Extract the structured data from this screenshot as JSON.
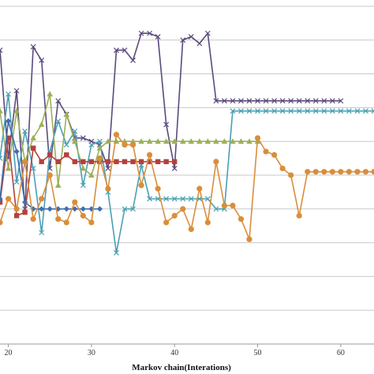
{
  "chart_data": {
    "type": "line",
    "title": "",
    "xlabel": "Markov chain(Interations)",
    "ylabel": "",
    "x_ticks": [
      20,
      30,
      40,
      50,
      60
    ],
    "xlim": [
      19,
      64
    ],
    "ylim": [
      0,
      10
    ],
    "y_gridlines": [
      1,
      2,
      3,
      4,
      5,
      6,
      7,
      8,
      9,
      10
    ],
    "grid": true,
    "legend": "none",
    "series": [
      {
        "color": "#5b4a7c",
        "marker": "x",
        "x": [
          19,
          20,
          21,
          22,
          23,
          24,
          25,
          26,
          27,
          28,
          29,
          30,
          31,
          32,
          33,
          34,
          35,
          36,
          37,
          38,
          39,
          40,
          41,
          42,
          43,
          44,
          45,
          46,
          47,
          48,
          49,
          50,
          51,
          52,
          53,
          54,
          55,
          56,
          57,
          58,
          59,
          60
        ],
        "y": [
          8.7,
          5.5,
          7.5,
          4.0,
          8.8,
          8.4,
          5.2,
          7.2,
          6.8,
          6.1,
          6.1,
          6.0,
          5.9,
          5.2,
          8.7,
          8.7,
          8.4,
          9.2,
          9.2,
          9.1,
          6.5,
          5.2,
          9.0,
          9.1,
          8.9,
          9.2,
          7.2,
          7.2,
          7.2,
          7.2,
          7.2,
          7.2,
          7.2,
          7.2,
          7.2,
          7.2,
          7.2,
          7.2,
          7.2,
          7.2,
          7.2,
          7.2
        ]
      },
      {
        "color": "#4aa0b4",
        "marker": "x",
        "x": [
          19,
          20,
          21,
          22,
          23,
          24,
          25,
          26,
          27,
          28,
          29,
          30,
          31,
          32,
          33,
          34,
          35,
          36,
          37,
          38,
          39,
          40,
          41,
          42,
          43,
          44,
          45,
          46,
          47,
          48,
          49,
          50,
          51,
          52,
          53,
          54,
          55,
          56,
          57,
          58,
          59,
          60,
          61,
          62,
          63,
          64
        ],
        "y": [
          5.5,
          7.4,
          4.8,
          6.3,
          5.2,
          3.3,
          5.7,
          6.6,
          5.9,
          6.3,
          4.7,
          5.9,
          6.0,
          4.5,
          2.7,
          4.0,
          4.0,
          5.3,
          4.3,
          4.3,
          4.3,
          4.3,
          4.3,
          4.3,
          4.3,
          4.3,
          4.0,
          4.0,
          6.9,
          6.9,
          6.9,
          6.9,
          6.9,
          6.9,
          6.9,
          6.9,
          6.9,
          6.9,
          6.9,
          6.9,
          6.9,
          6.9,
          6.9,
          6.9,
          6.9,
          6.9
        ]
      },
      {
        "color": "#9bb058",
        "marker": "triangle",
        "x": [
          19,
          20,
          21,
          22,
          23,
          24,
          25,
          26,
          27,
          28,
          29,
          30,
          31,
          32,
          33,
          34,
          35,
          36,
          37,
          38,
          39,
          40,
          41,
          42,
          43,
          44,
          45,
          46,
          47,
          48,
          49,
          50
        ],
        "y": [
          6.9,
          5.2,
          6.9,
          5.4,
          6.1,
          6.5,
          7.4,
          4.7,
          6.8,
          6.0,
          5.2,
          5.0,
          5.8,
          6.0,
          6.0,
          6.0,
          6.0,
          6.0,
          6.0,
          6.0,
          6.0,
          6.0,
          6.0,
          6.0,
          6.0,
          6.0,
          6.0,
          6.0,
          6.0,
          6.0,
          6.0,
          6.0
        ]
      },
      {
        "color": "#b5403c",
        "marker": "square",
        "x": [
          19,
          20,
          21,
          22,
          23,
          24,
          25,
          26,
          27,
          28,
          29,
          30,
          31,
          32,
          33,
          34,
          35,
          36,
          37,
          38,
          39,
          40
        ],
        "y": [
          4.2,
          6.1,
          3.8,
          3.9,
          5.8,
          5.4,
          5.6,
          5.4,
          5.6,
          5.4,
          5.4,
          5.4,
          5.4,
          5.4,
          5.4,
          5.4,
          5.4,
          5.4,
          5.4,
          5.4,
          5.4,
          5.4
        ]
      },
      {
        "color": "#3f6fb0",
        "marker": "diamond",
        "x": [
          19,
          20,
          21,
          22,
          23,
          24,
          25,
          26,
          27,
          28,
          29,
          30,
          31
        ],
        "y": [
          4.3,
          6.6,
          5.7,
          4.2,
          4.0,
          4.0,
          4.0,
          4.0,
          4.0,
          4.0,
          4.0,
          4.0,
          4.0
        ]
      },
      {
        "color": "#d98e3a",
        "marker": "circle",
        "x": [
          19,
          20,
          21,
          22,
          23,
          24,
          25,
          26,
          27,
          28,
          29,
          30,
          31,
          32,
          33,
          34,
          35,
          36,
          37,
          38,
          39,
          40,
          41,
          42,
          43,
          44,
          45,
          46,
          47,
          48,
          49,
          50,
          51,
          52,
          53,
          54,
          55,
          56,
          57,
          58,
          59,
          60,
          61,
          62,
          63,
          64
        ],
        "y": [
          3.6,
          4.3,
          4.0,
          5.4,
          3.7,
          4.3,
          5.0,
          3.7,
          3.6,
          4.2,
          3.8,
          3.6,
          5.5,
          4.6,
          6.2,
          5.9,
          5.9,
          4.7,
          5.6,
          4.6,
          3.6,
          3.8,
          4.0,
          3.4,
          4.6,
          3.6,
          5.4,
          4.1,
          4.1,
          3.7,
          3.1,
          6.1,
          5.7,
          5.6,
          5.2,
          5.0,
          3.8,
          5.1,
          5.1,
          5.1,
          5.1,
          5.1,
          5.1,
          5.1,
          5.1,
          5.1
        ]
      }
    ]
  }
}
